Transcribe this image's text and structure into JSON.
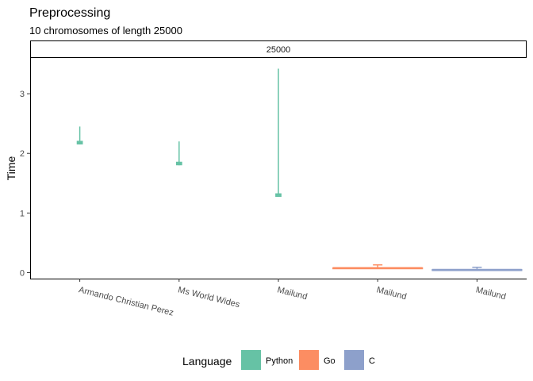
{
  "chart_data": {
    "type": "boxplot",
    "title": "Preprocessing",
    "subtitle": "10 chromosomes of length 25000",
    "facet_label": "25000",
    "xlabel": "",
    "ylabel": "Time",
    "ylim": [
      -0.1,
      3.6
    ],
    "y_ticks": [
      0,
      1,
      2,
      3
    ],
    "grid": false,
    "legend": {
      "title": "Language",
      "position": "bottom",
      "entries": [
        {
          "name": "Python",
          "color": "#66c2a5"
        },
        {
          "name": "Go",
          "color": "#fc8d62"
        },
        {
          "name": "C",
          "color": "#8da0cb"
        }
      ]
    },
    "categories": [
      "Armando Christian Perez",
      "Ms World Wides",
      "Mailund",
      "Mailund",
      "Mailund"
    ],
    "series": [
      {
        "language": "Python",
        "color": "#66c2a5",
        "min": 2.15,
        "q1": 2.16,
        "median": 2.18,
        "q3": 2.2,
        "max": 2.45
      },
      {
        "language": "Python",
        "color": "#66c2a5",
        "min": 1.8,
        "q1": 1.81,
        "median": 1.83,
        "q3": 1.85,
        "max": 2.2
      },
      {
        "language": "Python",
        "color": "#66c2a5",
        "min": 1.27,
        "q1": 1.28,
        "median": 1.3,
        "q3": 1.32,
        "max": 3.42
      },
      {
        "language": "Go",
        "color": "#fc8d62",
        "min": 0.06,
        "q1": 0.07,
        "median": 0.08,
        "q3": 0.08,
        "max": 0.13
      },
      {
        "language": "C",
        "color": "#8da0cb",
        "min": 0.03,
        "q1": 0.04,
        "median": 0.05,
        "q3": 0.05,
        "max": 0.09
      }
    ]
  }
}
